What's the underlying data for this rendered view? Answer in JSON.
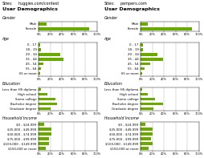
{
  "title": "User Demographics",
  "annotations": [
    "Sites:"
  ],
  "chart_data": [
    {
      "type": "bar",
      "orientation": "horizontal",
      "subtitle": "huggies.com/contest",
      "title": "Gender",
      "categories": [
        "Male",
        "Female"
      ],
      "values": [
        13,
        87
      ],
      "color": "#6aaa00",
      "xlim": [
        0,
        100
      ],
      "xticks": [
        {
          "value": 0,
          "label": "0%"
        },
        {
          "value": 20,
          "label": "20%"
        },
        {
          "value": 40,
          "label": "40%"
        },
        {
          "value": 60,
          "label": "60%"
        },
        {
          "value": 80,
          "label": "80%"
        },
        {
          "value": 100,
          "label": "100%"
        }
      ],
      "grid": true
    },
    {
      "type": "bar",
      "orientation": "horizontal",
      "subtitle": "huggies.com/contest",
      "title": "Age",
      "categories": [
        "0 - 17",
        "18 - 19",
        "20 - 34",
        "35 - 44",
        "45 - 54",
        "55 - 64",
        "65 or more"
      ],
      "values": [
        3,
        4,
        37,
        42,
        8,
        4,
        2
      ],
      "color": "#6aaa00",
      "xlim": [
        0,
        100
      ],
      "xticks": [
        {
          "value": 0,
          "label": "0%"
        },
        {
          "value": 20,
          "label": "20%"
        },
        {
          "value": 40,
          "label": "40%"
        },
        {
          "value": 60,
          "label": "60%"
        },
        {
          "value": 80,
          "label": "80%"
        },
        {
          "value": 100,
          "label": "100%"
        }
      ],
      "grid": true
    },
    {
      "type": "bar",
      "orientation": "horizontal",
      "subtitle": "huggies.com/contest",
      "title": "Education",
      "categories": [
        "Less than HS diploma",
        "High school",
        "Some college",
        "Bachelor degree",
        "Graduate degree"
      ],
      "values": [
        4,
        15,
        28,
        32,
        21
      ],
      "color": "#6aaa00",
      "xlim": [
        0,
        100
      ],
      "xticks": [
        {
          "value": 0,
          "label": "0%"
        },
        {
          "value": 20,
          "label": "20%"
        },
        {
          "value": 40,
          "label": "40%"
        },
        {
          "value": 60,
          "label": "60%"
        },
        {
          "value": 80,
          "label": "80%"
        },
        {
          "value": 100,
          "label": "100%"
        }
      ],
      "grid": true
    },
    {
      "type": "bar",
      "orientation": "horizontal",
      "subtitle": "huggies.com/contest",
      "title": "Household Income",
      "categories": [
        "$0 - $24,999",
        "$25,000 - $49,999",
        "$50,000 - $74,999",
        "$75,000 - $99,999",
        "$100,000 - $149,999",
        "$150,000 or more"
      ],
      "values": [
        9,
        22,
        22,
        17,
        18,
        12
      ],
      "color": "#6aaa00",
      "xlim": [
        0,
        100
      ],
      "xticks": [
        {
          "value": 0,
          "label": "0%"
        },
        {
          "value": 20,
          "label": "20%"
        },
        {
          "value": 40,
          "label": "40%"
        },
        {
          "value": 60,
          "label": "60%"
        },
        {
          "value": 80,
          "label": "80%"
        },
        {
          "value": 100,
          "label": "100%"
        }
      ],
      "grid": true
    },
    {
      "type": "bar",
      "orientation": "horizontal",
      "subtitle": "pampers.com",
      "title": "Gender",
      "categories": [
        "Male",
        "Female"
      ],
      "values": [
        12,
        88
      ],
      "color": "#6aaa00",
      "xlim": [
        0,
        100
      ],
      "xticks": [
        {
          "value": 0,
          "label": "0%"
        },
        {
          "value": 20,
          "label": "20%"
        },
        {
          "value": 40,
          "label": "40%"
        },
        {
          "value": 60,
          "label": "60%"
        },
        {
          "value": 80,
          "label": "80%"
        },
        {
          "value": 100,
          "label": "100%"
        }
      ],
      "grid": true
    },
    {
      "type": "bar",
      "orientation": "horizontal",
      "subtitle": "pampers.com",
      "title": "Age",
      "categories": [
        "0 - 17",
        "18 - 19",
        "20 - 34",
        "35 - 44",
        "45 - 54",
        "55 - 64",
        "65 or more"
      ],
      "values": [
        4,
        4,
        28,
        38,
        16,
        7,
        3
      ],
      "color": "#6aaa00",
      "xlim": [
        0,
        100
      ],
      "xticks": [
        {
          "value": 0,
          "label": "0%"
        },
        {
          "value": 20,
          "label": "20%"
        },
        {
          "value": 40,
          "label": "40%"
        },
        {
          "value": 60,
          "label": "60%"
        },
        {
          "value": 80,
          "label": "80%"
        },
        {
          "value": 100,
          "label": "100%"
        }
      ],
      "grid": true
    },
    {
      "type": "bar",
      "orientation": "horizontal",
      "subtitle": "pampers.com",
      "title": "Education",
      "categories": [
        "Less than HS diploma",
        "High school",
        "Some college",
        "Bachelor degree",
        "Graduate degree"
      ],
      "values": [
        3,
        12,
        25,
        38,
        22
      ],
      "color": "#6aaa00",
      "xlim": [
        0,
        100
      ],
      "xticks": [
        {
          "value": 0,
          "label": "0%"
        },
        {
          "value": 20,
          "label": "20%"
        },
        {
          "value": 40,
          "label": "40%"
        },
        {
          "value": 60,
          "label": "60%"
        },
        {
          "value": 80,
          "label": "80%"
        },
        {
          "value": 100,
          "label": "100%"
        }
      ],
      "grid": true
    },
    {
      "type": "bar",
      "orientation": "horizontal",
      "subtitle": "pampers.com",
      "title": "Household Income",
      "categories": [
        "$0 - $24,999",
        "$25,000 - $49,999",
        "$50,000 - $74,999",
        "$75,000 - $99,999",
        "$100,000 - $149,999",
        "$150,000 or more"
      ],
      "values": [
        8,
        20,
        21,
        18,
        20,
        13
      ],
      "color": "#6aaa00",
      "xlim": [
        0,
        100
      ],
      "xticks": [
        {
          "value": 0,
          "label": "0%"
        },
        {
          "value": 20,
          "label": "20%"
        },
        {
          "value": 40,
          "label": "40%"
        },
        {
          "value": 60,
          "label": "60%"
        },
        {
          "value": 80,
          "label": "80%"
        },
        {
          "value": 100,
          "label": "100%"
        }
      ],
      "grid": true
    }
  ]
}
